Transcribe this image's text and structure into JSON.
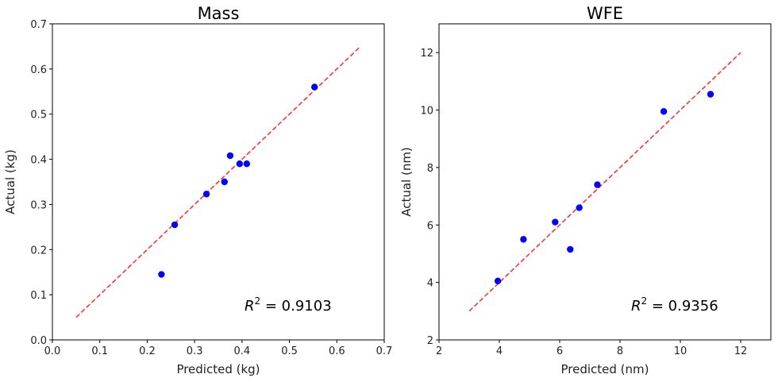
{
  "chart_data": [
    {
      "type": "scatter",
      "title": "Mass",
      "xlabel": "Predicted (kg)",
      "ylabel": "Actual (kg)",
      "xlim": [
        0,
        0.7
      ],
      "ylim": [
        0,
        0.7
      ],
      "xticks": [
        "0.0",
        "0.1",
        "0.2",
        "0.3",
        "0.4",
        "0.5",
        "0.6",
        "0.7"
      ],
      "yticks": [
        "0.0",
        "0.1",
        "0.2",
        "0.3",
        "0.4",
        "0.5",
        "0.6",
        "0.7"
      ],
      "x": [
        0.23,
        0.258,
        0.325,
        0.363,
        0.375,
        0.395,
        0.41,
        0.553
      ],
      "y": [
        0.145,
        0.255,
        0.323,
        0.35,
        0.408,
        0.39,
        0.39,
        0.56
      ],
      "reference_line": {
        "from": [
          0.05,
          0.05
        ],
        "to": [
          0.65,
          0.65
        ],
        "style": "dashed",
        "color": "#ff3333"
      },
      "point_color": "#0000ff",
      "annotation": {
        "prefix": "R",
        "sup": "2",
        "text": " = 0.9103"
      }
    },
    {
      "type": "scatter",
      "title": "WFE",
      "xlabel": "Predicted (nm)",
      "ylabel": "Actual (nm)",
      "xlim": [
        2,
        13
      ],
      "ylim": [
        2,
        13
      ],
      "xticks": [
        "2",
        "4",
        "6",
        "8",
        "10",
        "12"
      ],
      "yticks": [
        "2",
        "4",
        "6",
        "8",
        "10",
        "12"
      ],
      "x": [
        3.95,
        4.8,
        5.85,
        6.35,
        6.65,
        7.25,
        9.45,
        11.0
      ],
      "y": [
        4.05,
        5.5,
        6.1,
        5.15,
        6.6,
        7.4,
        9.95,
        10.55
      ],
      "reference_line": {
        "from": [
          3,
          3
        ],
        "to": [
          12,
          12
        ],
        "style": "dashed",
        "color": "#ff3333"
      },
      "point_color": "#0000ff",
      "annotation": {
        "prefix": "R",
        "sup": "2",
        "text": " = 0.9356"
      }
    }
  ]
}
